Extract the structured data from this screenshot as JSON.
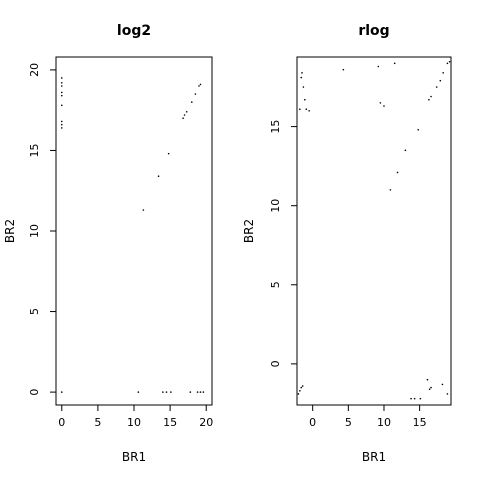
{
  "chart_data": [
    {
      "type": "scatter",
      "title": "log2",
      "xlabel": "BR1",
      "ylabel": "BR2",
      "xlim": [
        -0.8,
        20.8
      ],
      "ylim": [
        -0.8,
        20.8
      ],
      "xticks": [
        0,
        5,
        10,
        15,
        20
      ],
      "yticks": [
        0,
        5,
        10,
        15,
        20
      ],
      "grid": false,
      "points": [
        {
          "x": 0.0,
          "y": 19.5
        },
        {
          "x": 0.0,
          "y": 19.2
        },
        {
          "x": 0.0,
          "y": 19.0
        },
        {
          "x": 0.0,
          "y": 18.6
        },
        {
          "x": 0.0,
          "y": 18.4
        },
        {
          "x": 0.0,
          "y": 17.8
        },
        {
          "x": 0.0,
          "y": 16.8
        },
        {
          "x": 0.0,
          "y": 16.6
        },
        {
          "x": 0.0,
          "y": 16.4
        },
        {
          "x": 0.0,
          "y": 0.0
        },
        {
          "x": 11.3,
          "y": 11.3
        },
        {
          "x": 13.4,
          "y": 13.4
        },
        {
          "x": 14.8,
          "y": 14.8
        },
        {
          "x": 16.8,
          "y": 17.0
        },
        {
          "x": 17.0,
          "y": 17.2
        },
        {
          "x": 17.3,
          "y": 17.4
        },
        {
          "x": 18.0,
          "y": 18.0
        },
        {
          "x": 18.5,
          "y": 18.5
        },
        {
          "x": 19.0,
          "y": 19.0
        },
        {
          "x": 19.2,
          "y": 19.1
        },
        {
          "x": 10.6,
          "y": 0.0
        },
        {
          "x": 14.0,
          "y": 0.0
        },
        {
          "x": 14.5,
          "y": 0.0
        },
        {
          "x": 15.1,
          "y": 0.0
        },
        {
          "x": 17.8,
          "y": 0.0
        },
        {
          "x": 18.8,
          "y": 0.0
        },
        {
          "x": 19.2,
          "y": 0.0
        },
        {
          "x": 19.6,
          "y": 0.0
        }
      ]
    },
    {
      "type": "scatter",
      "title": "rlog",
      "xlabel": "BR1",
      "ylabel": "BR2",
      "xlim": [
        -2.2,
        19.4
      ],
      "ylim": [
        -2.6,
        19.4
      ],
      "xticks": [
        0,
        5,
        10,
        15
      ],
      "yticks": [
        0,
        5,
        10,
        15
      ],
      "grid": false,
      "points": [
        {
          "x": -1.8,
          "y": 16.1
        },
        {
          "x": -1.6,
          "y": 18.1
        },
        {
          "x": -1.5,
          "y": 18.4
        },
        {
          "x": -1.3,
          "y": 17.5
        },
        {
          "x": -1.1,
          "y": 16.7
        },
        {
          "x": -0.9,
          "y": 16.1
        },
        {
          "x": -0.5,
          "y": 16.0
        },
        {
          "x": 4.3,
          "y": 18.6
        },
        {
          "x": 9.2,
          "y": 18.8
        },
        {
          "x": 9.5,
          "y": 16.5
        },
        {
          "x": 10.0,
          "y": 16.3
        },
        {
          "x": 11.5,
          "y": 19.0
        },
        {
          "x": 10.9,
          "y": 11.0
        },
        {
          "x": 11.9,
          "y": 12.1
        },
        {
          "x": 13.0,
          "y": 13.5
        },
        {
          "x": 14.8,
          "y": 14.8
        },
        {
          "x": 16.3,
          "y": 16.7
        },
        {
          "x": 16.6,
          "y": 16.9
        },
        {
          "x": 17.4,
          "y": 17.5
        },
        {
          "x": 17.9,
          "y": 17.9
        },
        {
          "x": 18.3,
          "y": 18.4
        },
        {
          "x": 18.9,
          "y": 19.0
        },
        {
          "x": 19.2,
          "y": 19.1
        },
        {
          "x": -2.0,
          "y": -1.9
        },
        {
          "x": -1.8,
          "y": -1.7
        },
        {
          "x": -1.6,
          "y": -1.5
        },
        {
          "x": -1.4,
          "y": -1.4
        },
        {
          "x": 13.8,
          "y": -2.2
        },
        {
          "x": 14.3,
          "y": -2.2
        },
        {
          "x": 15.1,
          "y": -2.2
        },
        {
          "x": 16.1,
          "y": -1.0
        },
        {
          "x": 16.4,
          "y": -1.6
        },
        {
          "x": 16.6,
          "y": -1.5
        },
        {
          "x": 18.2,
          "y": -1.3
        },
        {
          "x": 18.9,
          "y": -1.9
        }
      ]
    }
  ]
}
